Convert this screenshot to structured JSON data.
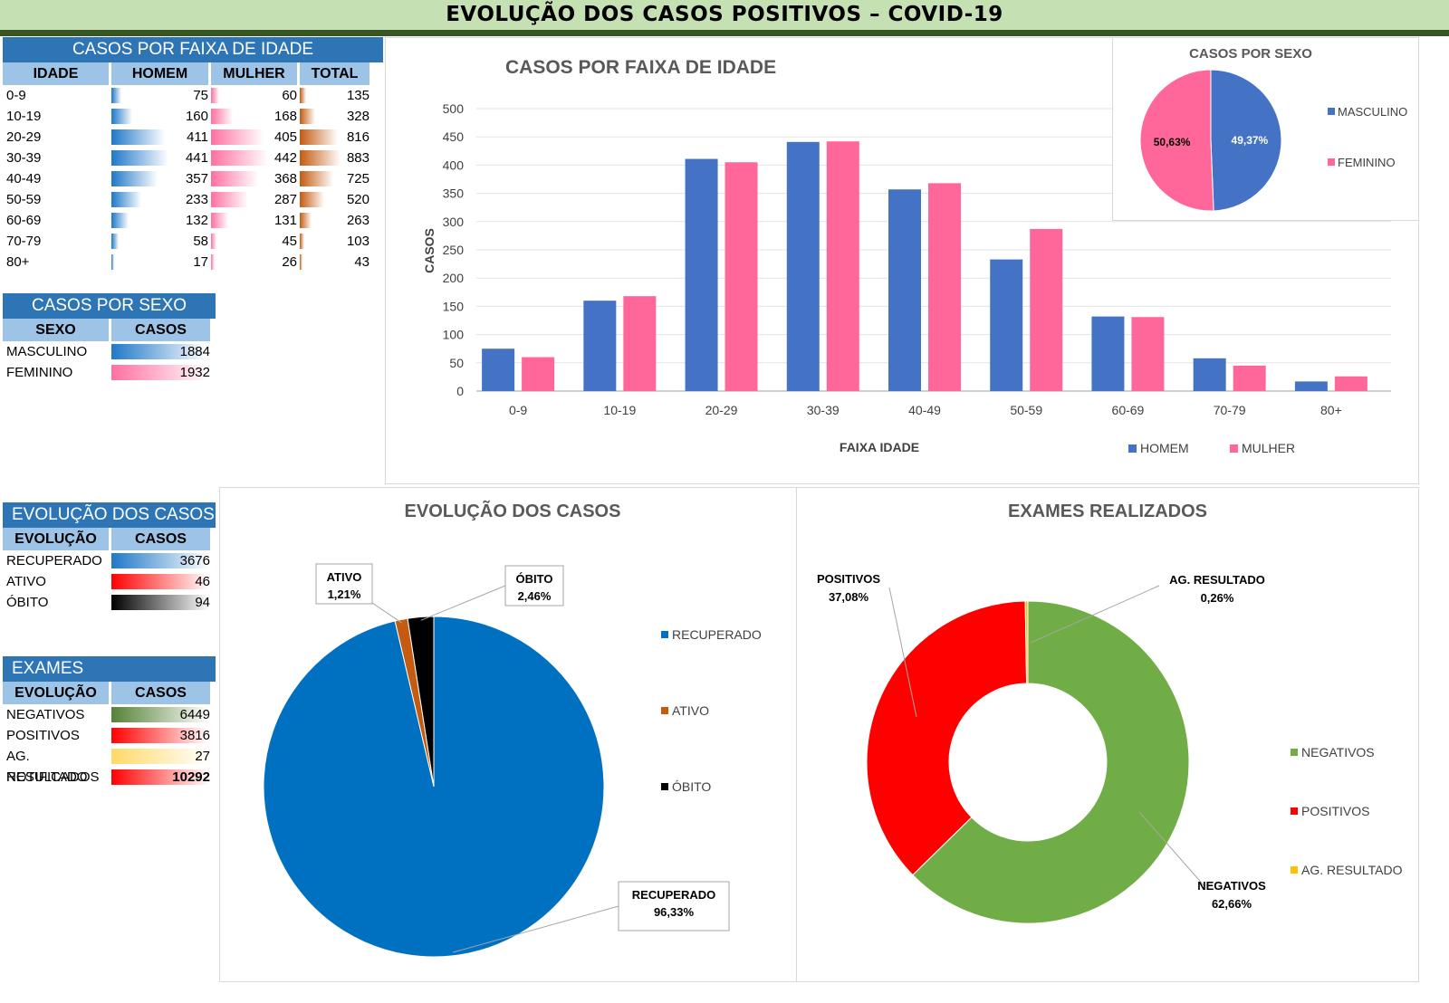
{
  "title": "EVOLUÇÃO DOS  CASOS POSITIVOS – COVID-19",
  "age_table": {
    "title": "CASOS POR FAIXA DE IDADE",
    "headers": [
      "IDADE",
      "HOMEM",
      "MULHER",
      "TOTAL"
    ],
    "rows": [
      {
        "label": "0-9",
        "homem": 75,
        "mulher": 60,
        "total": 135
      },
      {
        "label": "10-19",
        "homem": 160,
        "mulher": 168,
        "total": 328
      },
      {
        "label": "20-29",
        "homem": 411,
        "mulher": 405,
        "total": 816
      },
      {
        "label": "30-39",
        "homem": 441,
        "mulher": 442,
        "total": 883
      },
      {
        "label": "40-49",
        "homem": 357,
        "mulher": 368,
        "total": 725
      },
      {
        "label": "50-59",
        "homem": 233,
        "mulher": 287,
        "total": 520
      },
      {
        "label": "60-69",
        "homem": 132,
        "mulher": 131,
        "total": 263
      },
      {
        "label": "70-79",
        "homem": 58,
        "mulher": 45,
        "total": 103
      },
      {
        "label": "80+",
        "homem": 17,
        "mulher": 26,
        "total": 43
      }
    ]
  },
  "sex_table": {
    "title": "CASOS POR SEXO",
    "headers": [
      "SEXO",
      "CASOS"
    ],
    "rows": [
      {
        "label": "MASCULINO",
        "value": 1884,
        "max": 1932,
        "color": "blue"
      },
      {
        "label": "FEMININO",
        "value": 1932,
        "max": 1932,
        "color": "pink"
      }
    ]
  },
  "evolution_table": {
    "title": "EVOLUÇÃO DOS CASOS",
    "headers": [
      "EVOLUÇÃO",
      "CASOS"
    ],
    "rows": [
      {
        "label": "RECUPERADO",
        "value": 3676,
        "max": 3676,
        "color": "blue"
      },
      {
        "label": "ATIVO",
        "value": 46,
        "max": 46,
        "color": "red"
      },
      {
        "label": "ÓBITO",
        "value": 94,
        "max": 94,
        "color": "black"
      }
    ]
  },
  "exams_table": {
    "title": "EXAMES",
    "headers": [
      "EVOLUÇÃO",
      "CASOS"
    ],
    "rows": [
      {
        "label": "NEGATIVOS",
        "value": 6449,
        "max": 6449,
        "color": "green"
      },
      {
        "label": "POSITIVOS",
        "value": 3816,
        "max": 3816,
        "color": "red"
      },
      {
        "label": "AG. RESULTADO",
        "value": 27,
        "max": 27,
        "color": "yellow"
      },
      {
        "label": "NOTIFICADOS",
        "value": 10292,
        "max": 10292,
        "color": "red",
        "bold": true
      }
    ]
  },
  "chart_data": [
    {
      "type": "bar",
      "title": "CASOS POR FAIXA DE IDADE",
      "xlabel": "FAIXA IDADE",
      "ylabel": "CASOS",
      "ylim": [
        0,
        500
      ],
      "yticks": [
        0,
        50,
        100,
        150,
        200,
        250,
        300,
        350,
        400,
        450,
        500
      ],
      "grid": true,
      "legend": "bottom-right",
      "categories": [
        "0-9",
        "10-19",
        "20-29",
        "30-39",
        "40-49",
        "50-59",
        "60-69",
        "70-79",
        "80+"
      ],
      "series": [
        {
          "name": "HOMEM",
          "color": "#4472c4",
          "values": [
            75,
            160,
            411,
            441,
            357,
            233,
            132,
            58,
            17
          ]
        },
        {
          "name": "MULHER",
          "color": "#ff6699",
          "values": [
            60,
            168,
            405,
            442,
            368,
            287,
            131,
            45,
            26
          ]
        }
      ]
    },
    {
      "type": "pie",
      "title": "CASOS POR SEXO",
      "legend": "right",
      "slices": [
        {
          "name": "MASCULINO",
          "value": 49.37,
          "label": "49,37%",
          "color": "#4472c4"
        },
        {
          "name": "FEMININO",
          "value": 50.63,
          "label": "50,63%",
          "color": "#ff6699"
        }
      ]
    },
    {
      "type": "pie",
      "title": "EVOLUÇÃO DOS CASOS",
      "legend": "right",
      "slices": [
        {
          "name": "RECUPERADO",
          "value": 96.33,
          "label": "96,33%",
          "color": "#0070c0"
        },
        {
          "name": "ATIVO",
          "value": 1.21,
          "label": "1,21%",
          "color": "#c55a11"
        },
        {
          "name": "ÓBITO",
          "value": 2.46,
          "label": "2,46%",
          "color": "#000000"
        }
      ]
    },
    {
      "type": "pie",
      "subtype": "donut",
      "title": "EXAMES REALIZADOS",
      "legend": "right",
      "slices": [
        {
          "name": "NEGATIVOS",
          "value": 62.66,
          "label": "62,66%",
          "color": "#70ad47"
        },
        {
          "name": "POSITIVOS",
          "value": 37.08,
          "label": "37,08%",
          "color": "#ff0000"
        },
        {
          "name": "AG. RESULTADO",
          "value": 0.26,
          "label": "0,26%",
          "color": "#ffc000"
        }
      ]
    }
  ]
}
